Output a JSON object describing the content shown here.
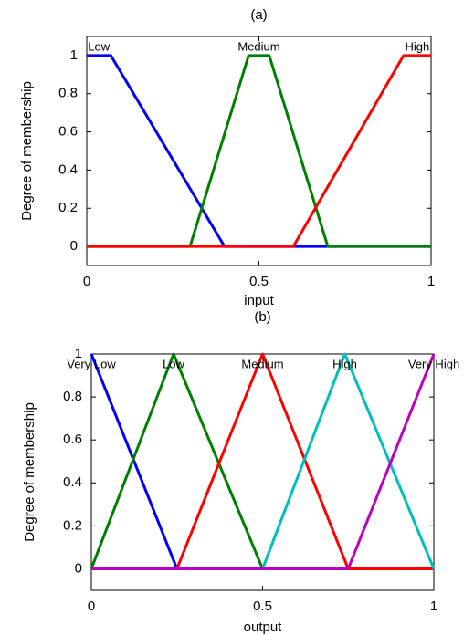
{
  "chart_data": [
    {
      "type": "line",
      "title": "(a)",
      "xlabel": "input",
      "ylabel": "Degree of membership",
      "xlim": [
        0,
        1
      ],
      "ylim": [
        -0.1,
        1.1
      ],
      "xticks": [
        0,
        0.5,
        1
      ],
      "yticks": [
        0,
        0.2,
        0.4,
        0.6,
        0.8,
        1
      ],
      "grid": false,
      "series": [
        {
          "name": "Low",
          "color": "#0000ff",
          "x": [
            0,
            0.07,
            0.4,
            1
          ],
          "values": [
            1,
            1,
            0,
            0
          ]
        },
        {
          "name": "Medium",
          "color": "#007f00",
          "x": [
            0,
            0.3,
            0.47,
            0.53,
            0.7,
            1
          ],
          "values": [
            0,
            0,
            1,
            1,
            0,
            0
          ]
        },
        {
          "name": "High",
          "color": "#ff0000",
          "x": [
            0,
            0.6,
            0.92,
            1
          ],
          "values": [
            0,
            0,
            1,
            1
          ]
        }
      ]
    },
    {
      "type": "line",
      "title": "(b)",
      "xlabel": "output",
      "ylabel": "Degree of membership",
      "xlim": [
        0,
        1
      ],
      "ylim": [
        -0.1,
        1
      ],
      "xticks": [
        0,
        0.5,
        1
      ],
      "yticks": [
        0,
        0.2,
        0.4,
        0.6,
        0.8,
        1
      ],
      "grid": false,
      "series": [
        {
          "name": "Very Low",
          "color": "#0000ff",
          "x": [
            0,
            0.25,
            1
          ],
          "values": [
            1,
            0,
            0
          ]
        },
        {
          "name": "Low",
          "color": "#007f00",
          "x": [
            0,
            0.24,
            0.5,
            1
          ],
          "values": [
            0,
            1,
            0,
            0
          ]
        },
        {
          "name": "Medium",
          "color": "#ff0000",
          "x": [
            0,
            0.25,
            0.5,
            0.75,
            1
          ],
          "values": [
            0,
            0,
            1,
            0,
            0
          ]
        },
        {
          "name": "High",
          "color": "#00bfbf",
          "x": [
            0,
            0.5,
            0.74,
            1
          ],
          "values": [
            0,
            0,
            1,
            0
          ]
        },
        {
          "name": "Very High",
          "color": "#bf00bf",
          "x": [
            0,
            0.75,
            1
          ],
          "values": [
            0,
            0,
            1
          ]
        }
      ]
    }
  ]
}
